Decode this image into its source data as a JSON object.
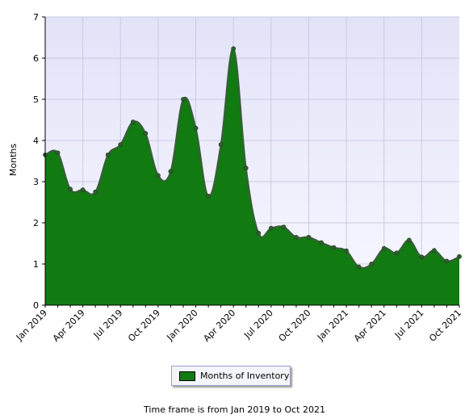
{
  "chart_data": {
    "type": "area",
    "ylabel": "Months",
    "xlabel": "",
    "ylim": [
      0,
      7
    ],
    "yticks": [
      "0",
      "1",
      "2",
      "3",
      "4",
      "5",
      "6",
      "7"
    ],
    "x_tick_labels": [
      "Jan 2019",
      "Apr 2019",
      "Jul 2019",
      "Oct 2019",
      "Jan 2020",
      "Apr 2020",
      "Jul 2020",
      "Oct 2020",
      "Jan 2021",
      "Apr 2021",
      "Jul 2021",
      "Oct 2021"
    ],
    "x": [
      "Jan 2019",
      "Feb 2019",
      "Mar 2019",
      "Apr 2019",
      "May 2019",
      "Jun 2019",
      "Jul 2019",
      "Aug 2019",
      "Sep 2019",
      "Oct 2019",
      "Nov 2019",
      "Dec 2019",
      "Jan 2020",
      "Feb 2020",
      "Mar 2020",
      "Apr 2020",
      "May 2020",
      "Jun 2020",
      "Jul 2020",
      "Aug 2020",
      "Sep 2020",
      "Oct 2020",
      "Nov 2020",
      "Dec 2020",
      "Jan 2021",
      "Feb 2021",
      "Mar 2021",
      "Apr 2021",
      "May 2021",
      "Jun 2021",
      "Jul 2021",
      "Aug 2021",
      "Sep 2021",
      "Oct 2021"
    ],
    "series": [
      {
        "name": "Months of Inventory",
        "values": [
          3.65,
          3.7,
          2.82,
          2.8,
          2.75,
          3.65,
          3.9,
          4.45,
          4.17,
          3.15,
          3.25,
          5.0,
          4.3,
          2.65,
          3.9,
          6.23,
          3.33,
          1.75,
          1.87,
          1.9,
          1.65,
          1.65,
          1.52,
          1.4,
          1.32,
          0.93,
          1.0,
          1.38,
          1.27,
          1.58,
          1.17,
          1.33,
          1.07,
          1.18
        ]
      }
    ],
    "grid": true,
    "legend_position": "bottom-center",
    "colors": {
      "fill": "#117a11",
      "line": "#3e5a3e",
      "plot_background": "#eaeafa",
      "grid": "#c9cbe0"
    }
  },
  "legend": {
    "label": "Months of Inventory"
  },
  "footer": {
    "text": "Time frame is from Jan 2019 to Oct 2021"
  }
}
